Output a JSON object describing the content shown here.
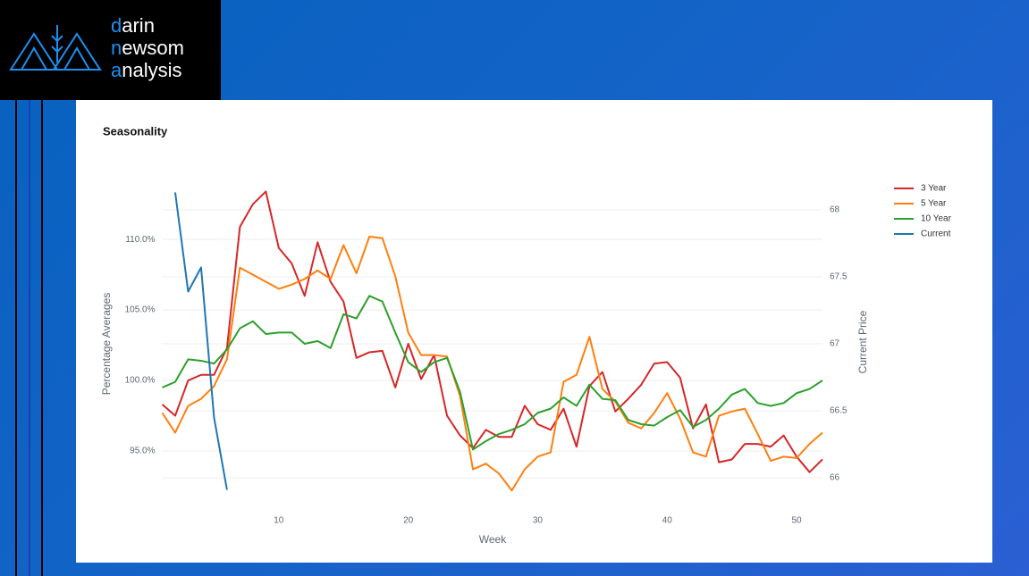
{
  "header": {
    "logo_lines": [
      "darin",
      "newsom",
      "analysis"
    ]
  },
  "chart_data": {
    "type": "line",
    "title": "Seasonality",
    "x_label": "Week",
    "y_label": "Percentage Averages",
    "y2_label": "Current Price",
    "x": [
      1,
      2,
      3,
      4,
      5,
      6,
      7,
      8,
      9,
      10,
      11,
      12,
      13,
      14,
      15,
      16,
      17,
      18,
      19,
      20,
      21,
      22,
      23,
      24,
      25,
      26,
      27,
      28,
      29,
      30,
      31,
      32,
      33,
      34,
      35,
      36,
      37,
      38,
      39,
      40,
      41,
      42,
      43,
      44,
      45,
      46,
      47,
      48,
      49,
      50,
      51,
      52
    ],
    "xlim": [
      1,
      52
    ],
    "xticks": [
      10,
      20,
      30,
      40,
      50
    ],
    "ylim": [
      91.2,
      114
    ],
    "yticks": [
      {
        "value": 95,
        "label": "95.0%"
      },
      {
        "value": 100,
        "label": "100.0%"
      },
      {
        "value": 105,
        "label": "105.0%"
      },
      {
        "value": 110,
        "label": "110.0%"
      }
    ],
    "y2lim": [
      65.8,
      68.2
    ],
    "y2ticks": [
      66,
      66.5,
      67,
      67.5,
      68
    ],
    "grid": true,
    "legend_position": "right",
    "series": [
      {
        "name": "3 Year",
        "color": "#d62728",
        "values": [
          98.3,
          97.5,
          100.0,
          100.4,
          100.4,
          102.3,
          110.9,
          112.5,
          113.4,
          109.4,
          108.3,
          106.0,
          109.8,
          107.0,
          105.6,
          101.6,
          102.0,
          102.1,
          99.5,
          102.6,
          100.1,
          101.8,
          97.5,
          96.1,
          95.2,
          96.5,
          96.0,
          96.0,
          98.2,
          96.9,
          96.5,
          98.0,
          95.3,
          99.6,
          100.6,
          97.8,
          98.7,
          99.7,
          101.2,
          101.3,
          100.2,
          96.6,
          98.3,
          94.2,
          94.4,
          95.5,
          95.5,
          95.3,
          96.1,
          94.6,
          93.5,
          94.4
        ]
      },
      {
        "name": "5 Year",
        "color": "#ff7f0e",
        "values": [
          97.7,
          96.3,
          98.2,
          98.7,
          99.6,
          101.5,
          108.0,
          107.5,
          107.0,
          106.5,
          106.8,
          107.2,
          107.8,
          107.2,
          109.6,
          107.6,
          110.2,
          110.1,
          107.4,
          103.4,
          101.8,
          101.8,
          101.7,
          98.9,
          93.7,
          94.1,
          93.4,
          92.2,
          93.7,
          94.6,
          94.9,
          99.9,
          100.4,
          103.1,
          99.4,
          98.5,
          97.0,
          96.6,
          97.7,
          99.1,
          97.3,
          94.9,
          94.6,
          97.5,
          97.8,
          98.0,
          96.2,
          94.3,
          94.6,
          94.5,
          95.5,
          96.3
        ]
      },
      {
        "name": "10 Year",
        "color": "#2ca02c",
        "values": [
          99.5,
          99.9,
          101.5,
          101.4,
          101.2,
          102.2,
          103.7,
          104.2,
          103.3,
          103.4,
          103.4,
          102.6,
          102.8,
          102.3,
          104.7,
          104.4,
          106.0,
          105.6,
          103.4,
          101.3,
          100.6,
          101.3,
          101.6,
          99.2,
          95.1,
          95.7,
          96.2,
          96.5,
          96.9,
          97.7,
          98.0,
          98.8,
          98.2,
          99.7,
          98.7,
          98.6,
          97.2,
          96.9,
          96.8,
          97.4,
          97.9,
          96.7,
          97.2,
          98.0,
          99.0,
          99.4,
          98.4,
          98.2,
          98.4,
          99.1,
          99.4,
          100.0
        ]
      },
      {
        "name": "Current",
        "color": "#1f77b4",
        "axis": "y2",
        "values": [
          null,
          68.13,
          67.39,
          67.57,
          66.45,
          65.91,
          null,
          null,
          null,
          null,
          null,
          null,
          null,
          null,
          null,
          null,
          null,
          null,
          null,
          null,
          null,
          null,
          null,
          null,
          null,
          null,
          null,
          null,
          null,
          null,
          null,
          null,
          null,
          null,
          null,
          null,
          null,
          null,
          null,
          null,
          null,
          null,
          null,
          null,
          null,
          null,
          null,
          null,
          null,
          null,
          null,
          null
        ]
      }
    ]
  }
}
